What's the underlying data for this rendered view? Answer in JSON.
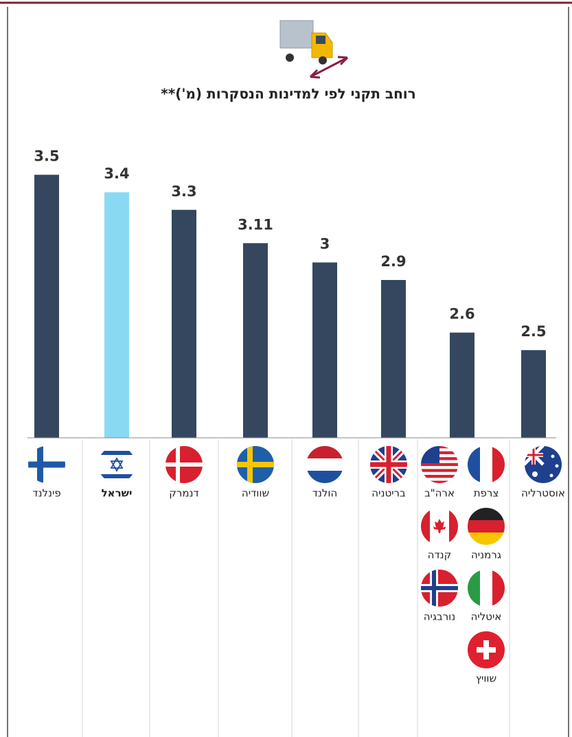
{
  "chart_data": {
    "type": "bar",
    "title": "רוחב תקני לפי למדינות הנסקרות (מ')**",
    "categories": [
      [
        "פינלנד"
      ],
      [
        "ישראל"
      ],
      [
        "דנמרק"
      ],
      [
        "שוודיה"
      ],
      [
        "הולנד"
      ],
      [
        "בריטניה"
      ],
      [
        "ארה\"ב",
        "קנדה",
        "נורבגיה",
        "צרפת",
        "גרמניה",
        "איטליה",
        "שוויץ"
      ],
      [
        "אוסטרליה"
      ]
    ],
    "values": [
      3.5,
      3.4,
      3.3,
      3.11,
      3,
      2.9,
      2.6,
      2.5
    ],
    "colors": [
      "#34475f",
      "#8ad9f3",
      "#34475f",
      "#34475f",
      "#34475f",
      "#34475f",
      "#34475f",
      "#34475f"
    ],
    "ylim": [
      2,
      3.8
    ]
  }
}
